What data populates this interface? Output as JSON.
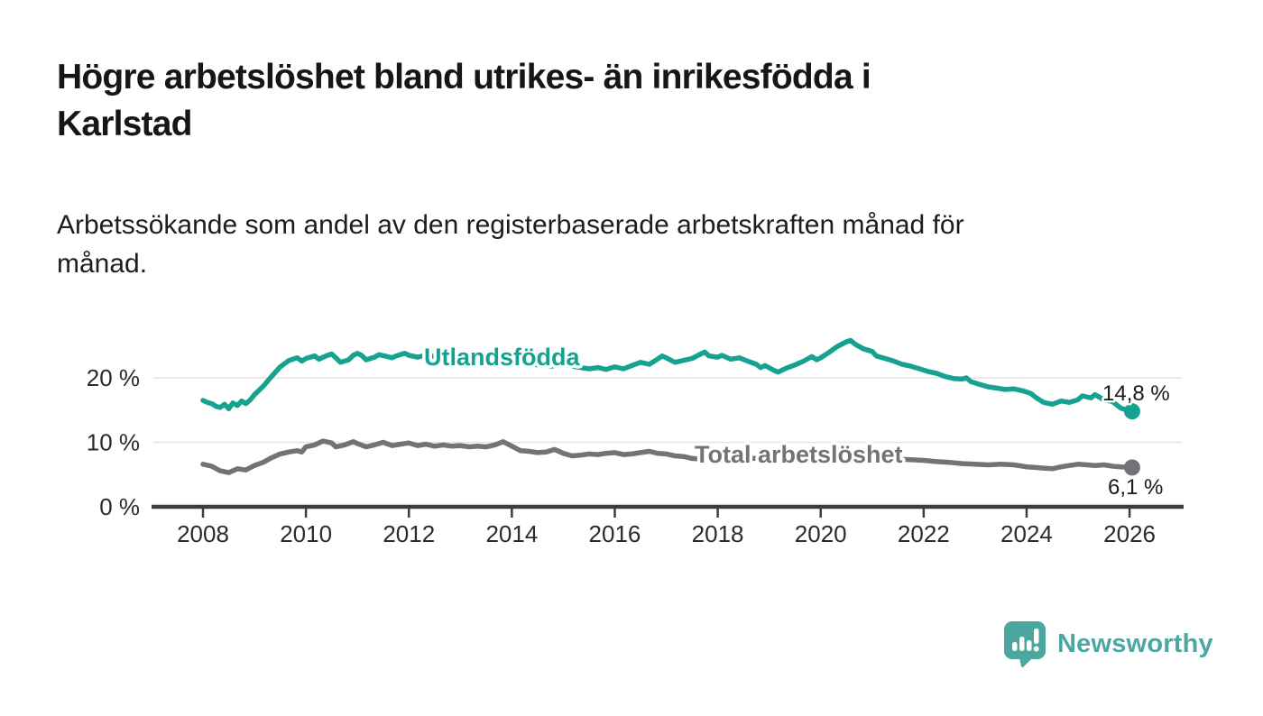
{
  "header": {
    "title_lines": [
      "Högre arbetslöshet bland utrikes- än inrikesfödda i",
      "Karlstad"
    ],
    "subtitle_lines": [
      "Arbetssökande som andel av den registerbaserade arbetskraften månad för",
      "månad."
    ]
  },
  "footer": {
    "brand": "Newsworthy",
    "brand_color": "#4da7a1"
  },
  "chart_data": {
    "type": "line",
    "title": "Högre arbetslöshet bland utrikes- än inrikesfödda i Karlstad",
    "subtitle": "Arbetssökande som andel av den registerbaserade arbetskraften månad för månad.",
    "unit": "%",
    "xlim": [
      2007.05,
      2027.0
    ],
    "ylim": [
      0,
      28.3
    ],
    "grid": "horizontal",
    "legend_position": "inline-labels",
    "axis_color": "#3d3d3d",
    "gridline_color": "#e4e4e4",
    "x_ticks": [
      "2008",
      "2010",
      "2012",
      "2014",
      "2016",
      "2018",
      "2020",
      "2022",
      "2024",
      "2026"
    ],
    "x_tick_values": [
      2008,
      2010,
      2012,
      2014,
      2016,
      2018,
      2020,
      2022,
      2024,
      2026
    ],
    "y_ticks": [
      {
        "value": 0,
        "label": "0 %"
      },
      {
        "value": 10,
        "label": "10 %"
      },
      {
        "value": 20,
        "label": "20 %"
      }
    ],
    "series": [
      {
        "name": "Utlandsfödda",
        "color": "#16a291",
        "end_value": 14.8,
        "end_label": "14,8 %",
        "points": [
          [
            2008.0,
            16.5
          ],
          [
            2008.08,
            16.2
          ],
          [
            2008.17,
            16.0
          ],
          [
            2008.25,
            15.6
          ],
          [
            2008.33,
            15.4
          ],
          [
            2008.42,
            15.9
          ],
          [
            2008.5,
            15.2
          ],
          [
            2008.58,
            16.1
          ],
          [
            2008.67,
            15.7
          ],
          [
            2008.75,
            16.4
          ],
          [
            2008.83,
            16.0
          ],
          [
            2008.92,
            16.6
          ],
          [
            2009.0,
            17.4
          ],
          [
            2009.17,
            18.7
          ],
          [
            2009.33,
            20.2
          ],
          [
            2009.5,
            21.7
          ],
          [
            2009.67,
            22.7
          ],
          [
            2009.83,
            23.1
          ],
          [
            2009.92,
            22.6
          ],
          [
            2010.0,
            23.0
          ],
          [
            2010.17,
            23.4
          ],
          [
            2010.25,
            22.9
          ],
          [
            2010.42,
            23.5
          ],
          [
            2010.5,
            23.7
          ],
          [
            2010.58,
            23.1
          ],
          [
            2010.67,
            22.4
          ],
          [
            2010.83,
            22.8
          ],
          [
            2010.92,
            23.5
          ],
          [
            2011.0,
            23.8
          ],
          [
            2011.08,
            23.5
          ],
          [
            2011.17,
            22.8
          ],
          [
            2011.33,
            23.2
          ],
          [
            2011.42,
            23.6
          ],
          [
            2011.58,
            23.3
          ],
          [
            2011.67,
            23.1
          ],
          [
            2011.75,
            23.4
          ],
          [
            2011.92,
            23.8
          ],
          [
            2012.0,
            23.5
          ],
          [
            2012.17,
            23.2
          ],
          [
            2012.33,
            23.5
          ],
          [
            2012.5,
            23.3
          ],
          [
            2012.67,
            23.1
          ],
          [
            2012.83,
            23.4
          ],
          [
            2013.0,
            23.2
          ],
          [
            2013.25,
            23.0
          ],
          [
            2013.5,
            22.8
          ],
          [
            2013.75,
            22.6
          ],
          [
            2014.0,
            22.7
          ],
          [
            2014.25,
            22.3
          ],
          [
            2014.5,
            22.0
          ],
          [
            2014.75,
            21.8
          ],
          [
            2015.0,
            22.0
          ],
          [
            2015.25,
            21.7
          ],
          [
            2015.5,
            21.4
          ],
          [
            2015.67,
            21.6
          ],
          [
            2015.83,
            21.3
          ],
          [
            2016.0,
            21.7
          ],
          [
            2016.17,
            21.4
          ],
          [
            2016.33,
            21.9
          ],
          [
            2016.5,
            22.4
          ],
          [
            2016.67,
            22.1
          ],
          [
            2016.83,
            22.9
          ],
          [
            2016.92,
            23.4
          ],
          [
            2017.0,
            23.1
          ],
          [
            2017.17,
            22.4
          ],
          [
            2017.33,
            22.7
          ],
          [
            2017.5,
            23.0
          ],
          [
            2017.67,
            23.7
          ],
          [
            2017.75,
            24.0
          ],
          [
            2017.83,
            23.4
          ],
          [
            2018.0,
            23.2
          ],
          [
            2018.08,
            23.5
          ],
          [
            2018.25,
            22.9
          ],
          [
            2018.42,
            23.1
          ],
          [
            2018.58,
            22.6
          ],
          [
            2018.75,
            22.1
          ],
          [
            2018.83,
            21.6
          ],
          [
            2018.92,
            21.9
          ],
          [
            2019.08,
            21.2
          ],
          [
            2019.17,
            20.9
          ],
          [
            2019.33,
            21.5
          ],
          [
            2019.5,
            22.0
          ],
          [
            2019.67,
            22.6
          ],
          [
            2019.83,
            23.3
          ],
          [
            2019.92,
            22.8
          ],
          [
            2020.0,
            23.1
          ],
          [
            2020.17,
            24.0
          ],
          [
            2020.33,
            24.9
          ],
          [
            2020.5,
            25.6
          ],
          [
            2020.58,
            25.8
          ],
          [
            2020.67,
            25.2
          ],
          [
            2020.83,
            24.5
          ],
          [
            2020.92,
            24.3
          ],
          [
            2021.0,
            24.1
          ],
          [
            2021.08,
            23.4
          ],
          [
            2021.25,
            23.0
          ],
          [
            2021.42,
            22.6
          ],
          [
            2021.58,
            22.1
          ],
          [
            2021.75,
            21.8
          ],
          [
            2021.92,
            21.4
          ],
          [
            2022.08,
            21.0
          ],
          [
            2022.25,
            20.7
          ],
          [
            2022.42,
            20.2
          ],
          [
            2022.58,
            19.9
          ],
          [
            2022.75,
            19.8
          ],
          [
            2022.83,
            20.0
          ],
          [
            2022.92,
            19.4
          ],
          [
            2023.08,
            19.0
          ],
          [
            2023.25,
            18.6
          ],
          [
            2023.42,
            18.4
          ],
          [
            2023.58,
            18.2
          ],
          [
            2023.75,
            18.3
          ],
          [
            2023.92,
            18.0
          ],
          [
            2024.08,
            17.6
          ],
          [
            2024.17,
            17.0
          ],
          [
            2024.33,
            16.2
          ],
          [
            2024.5,
            15.9
          ],
          [
            2024.67,
            16.4
          ],
          [
            2024.83,
            16.2
          ],
          [
            2025.0,
            16.6
          ],
          [
            2025.08,
            17.2
          ],
          [
            2025.25,
            16.9
          ],
          [
            2025.33,
            17.4
          ],
          [
            2025.5,
            16.6
          ],
          [
            2025.67,
            16.3
          ],
          [
            2025.83,
            15.3
          ],
          [
            2026.05,
            14.8
          ]
        ]
      },
      {
        "name": "Total arbetslöshet",
        "color": "#737377",
        "end_value": 6.1,
        "end_label": "6,1 %",
        "points": [
          [
            2008.0,
            6.6
          ],
          [
            2008.17,
            6.3
          ],
          [
            2008.33,
            5.6
          ],
          [
            2008.5,
            5.3
          ],
          [
            2008.67,
            5.9
          ],
          [
            2008.83,
            5.7
          ],
          [
            2009.0,
            6.4
          ],
          [
            2009.17,
            6.9
          ],
          [
            2009.33,
            7.6
          ],
          [
            2009.5,
            8.2
          ],
          [
            2009.67,
            8.5
          ],
          [
            2009.83,
            8.7
          ],
          [
            2009.92,
            8.5
          ],
          [
            2010.0,
            9.3
          ],
          [
            2010.17,
            9.6
          ],
          [
            2010.33,
            10.2
          ],
          [
            2010.5,
            9.9
          ],
          [
            2010.58,
            9.3
          ],
          [
            2010.75,
            9.6
          ],
          [
            2010.92,
            10.1
          ],
          [
            2011.0,
            9.8
          ],
          [
            2011.17,
            9.3
          ],
          [
            2011.33,
            9.6
          ],
          [
            2011.5,
            10.0
          ],
          [
            2011.67,
            9.5
          ],
          [
            2011.83,
            9.7
          ],
          [
            2012.0,
            9.9
          ],
          [
            2012.17,
            9.5
          ],
          [
            2012.33,
            9.7
          ],
          [
            2012.5,
            9.4
          ],
          [
            2012.67,
            9.6
          ],
          [
            2012.83,
            9.4
          ],
          [
            2013.0,
            9.5
          ],
          [
            2013.17,
            9.3
          ],
          [
            2013.33,
            9.4
          ],
          [
            2013.5,
            9.3
          ],
          [
            2013.67,
            9.6
          ],
          [
            2013.83,
            10.1
          ],
          [
            2014.0,
            9.4
          ],
          [
            2014.17,
            8.7
          ],
          [
            2014.33,
            8.6
          ],
          [
            2014.5,
            8.4
          ],
          [
            2014.67,
            8.5
          ],
          [
            2014.83,
            8.9
          ],
          [
            2015.0,
            8.3
          ],
          [
            2015.17,
            7.9
          ],
          [
            2015.33,
            8.0
          ],
          [
            2015.5,
            8.2
          ],
          [
            2015.67,
            8.1
          ],
          [
            2015.83,
            8.3
          ],
          [
            2016.0,
            8.4
          ],
          [
            2016.17,
            8.1
          ],
          [
            2016.33,
            8.2
          ],
          [
            2016.5,
            8.4
          ],
          [
            2016.67,
            8.6
          ],
          [
            2016.83,
            8.3
          ],
          [
            2017.0,
            8.2
          ],
          [
            2017.17,
            7.9
          ],
          [
            2017.33,
            7.8
          ],
          [
            2017.5,
            7.5
          ],
          [
            2017.67,
            7.4
          ],
          [
            2017.83,
            7.6
          ],
          [
            2018.0,
            7.7
          ],
          [
            2018.5,
            7.6
          ],
          [
            2019.0,
            7.4
          ],
          [
            2019.5,
            7.3
          ],
          [
            2020.0,
            7.6
          ],
          [
            2020.5,
            7.9
          ],
          [
            2021.0,
            7.7
          ],
          [
            2021.5,
            7.4
          ],
          [
            2022.0,
            7.2
          ],
          [
            2022.25,
            7.0
          ],
          [
            2022.5,
            6.9
          ],
          [
            2022.75,
            6.7
          ],
          [
            2023.0,
            6.6
          ],
          [
            2023.25,
            6.5
          ],
          [
            2023.5,
            6.6
          ],
          [
            2023.75,
            6.5
          ],
          [
            2024.0,
            6.2
          ],
          [
            2024.17,
            6.1
          ],
          [
            2024.33,
            6.0
          ],
          [
            2024.5,
            5.9
          ],
          [
            2024.67,
            6.2
          ],
          [
            2024.83,
            6.4
          ],
          [
            2025.0,
            6.6
          ],
          [
            2025.17,
            6.5
          ],
          [
            2025.33,
            6.4
          ],
          [
            2025.5,
            6.5
          ],
          [
            2025.67,
            6.3
          ],
          [
            2025.83,
            6.2
          ],
          [
            2026.05,
            6.1
          ]
        ]
      }
    ]
  }
}
